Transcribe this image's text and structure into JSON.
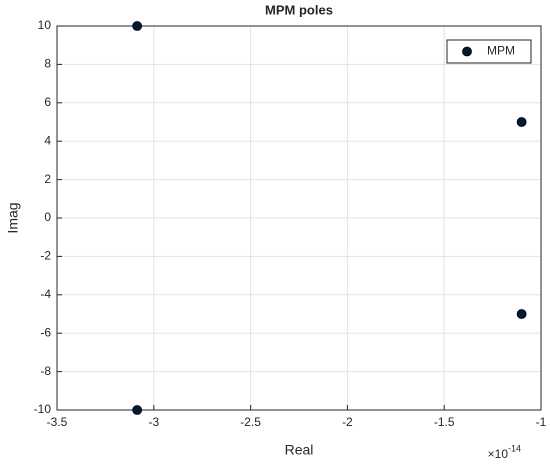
{
  "chart_data": {
    "type": "scatter",
    "title": "MPM poles",
    "x_label": "Real",
    "y_label": "Imag",
    "x_exponent": {
      "base": "×10",
      "power": "-14"
    },
    "series": [
      {
        "name": "MPM",
        "color": "#001a33",
        "x": [
          -3.086,
          -3.086,
          -1.1,
          -1.1
        ],
        "values": [
          10,
          -10,
          5,
          -5
        ]
      }
    ],
    "xlim": [
      -3.5,
      -1
    ],
    "xticks": [
      -3.5,
      -3,
      -2.5,
      -2,
      -1.5,
      -1
    ],
    "ylim": [
      -10,
      10
    ],
    "yticks": [
      -10,
      -8,
      -6,
      -4,
      -2,
      0,
      2,
      4,
      6,
      8,
      10
    ],
    "grid": true,
    "legend": "northeast"
  }
}
